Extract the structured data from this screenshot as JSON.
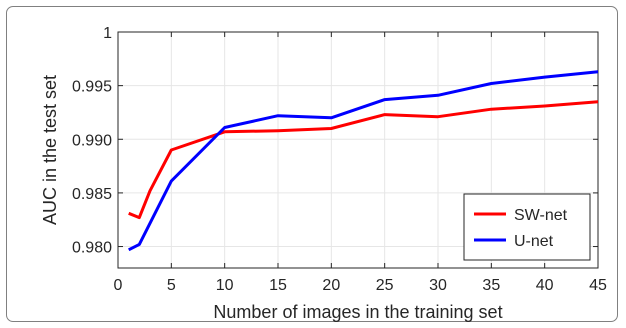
{
  "chart_data": {
    "type": "line",
    "xlabel": "Number of images in the training set",
    "ylabel": "AUC in the test set",
    "xlim": [
      0,
      45
    ],
    "ylim": [
      0.978,
      1.0
    ],
    "x_ticks": [
      "0",
      "5",
      "10",
      "15",
      "20",
      "25",
      "30",
      "35",
      "40",
      "45"
    ],
    "y_ticks": [
      "0.980",
      "0.985",
      "0.990",
      "0.995",
      "1"
    ],
    "grid": true,
    "legend_position": "bottom-right",
    "series": [
      {
        "name": "SW-net",
        "color": "#ff0000",
        "x": [
          1,
          2,
          3,
          5,
          10,
          15,
          20,
          25,
          30,
          35,
          40,
          45
        ],
        "y": [
          0.9831,
          0.9827,
          0.9852,
          0.989,
          0.9907,
          0.9908,
          0.991,
          0.9923,
          0.9921,
          0.9928,
          0.9931,
          0.9935
        ]
      },
      {
        "name": "U-net",
        "color": "#0000ff",
        "x": [
          1,
          2,
          5,
          10,
          15,
          20,
          25,
          30,
          35,
          40,
          45
        ],
        "y": [
          0.9797,
          0.9802,
          0.9861,
          0.9911,
          0.9922,
          0.992,
          0.9937,
          0.9941,
          0.9952,
          0.9958,
          0.9963
        ]
      }
    ]
  }
}
